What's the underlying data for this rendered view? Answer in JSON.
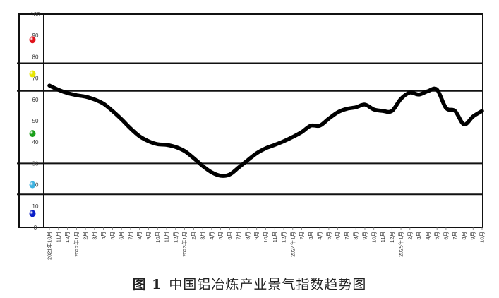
{
  "caption": {
    "figure_label": "图 1",
    "title": "中国铝冶炼产业景气指数趋势图"
  },
  "chart_data": {
    "type": "line",
    "title": "中国铝冶炼产业景气指数趋势图",
    "xlabel": "",
    "ylabel": "",
    "ylim": [
      0,
      100
    ],
    "y_ticks": [
      0,
      10,
      20,
      30,
      40,
      50,
      60,
      70,
      80,
      90,
      100
    ],
    "grid": false,
    "zone_boundaries": [
      15.5,
      30,
      64,
      77
    ],
    "zone_lights": [
      {
        "name": "red-light",
        "color": "#e0141c",
        "value": 88
      },
      {
        "name": "yellow-light",
        "color": "#e8e600",
        "value": 72
      },
      {
        "name": "green-light",
        "color": "#1aa01a",
        "value": 44
      },
      {
        "name": "light-blue-light",
        "color": "#3fb2e0",
        "value": 20
      },
      {
        "name": "blue-light",
        "color": "#0a1ec8",
        "value": 6.5
      }
    ],
    "categories": [
      "2021年10月",
      "11月",
      "12月",
      "2022年1月",
      "2月",
      "3月",
      "4月",
      "5月",
      "6月",
      "7月",
      "8月",
      "9月",
      "10月",
      "11月",
      "12月",
      "2023年1月",
      "2月",
      "3月",
      "4月",
      "5月",
      "6月",
      "7月",
      "8月",
      "9月",
      "10月",
      "11月",
      "12月",
      "2024年1月",
      "2月",
      "3月",
      "4月",
      "5月",
      "6月",
      "7月",
      "8月",
      "9月",
      "10月",
      "11月",
      "12月",
      "2025年1月",
      "2月",
      "3月",
      "4月",
      "5月",
      "6月",
      "7月",
      "8月",
      "9月",
      "10月"
    ],
    "series": [
      {
        "name": "景气指数",
        "color": "#000000",
        "values": [
          66.5,
          64.5,
          63.0,
          62.0,
          61.3,
          60.0,
          58.0,
          54.6,
          50.7,
          46.4,
          42.7,
          40.4,
          39.0,
          38.7,
          37.7,
          35.8,
          32.5,
          28.8,
          25.8,
          24.2,
          24.8,
          28.1,
          31.5,
          34.8,
          37.1,
          38.7,
          40.4,
          42.4,
          44.7,
          47.7,
          47.7,
          51.0,
          54.0,
          55.6,
          56.3,
          57.6,
          55.3,
          54.6,
          54.6,
          60.3,
          63.2,
          62.3,
          63.9,
          64.6,
          56.0,
          54.6,
          48.3,
          52.0,
          54.6
        ]
      }
    ]
  }
}
